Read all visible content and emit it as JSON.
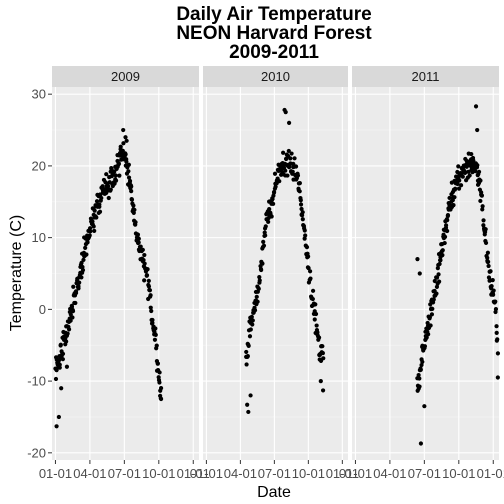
{
  "chart_data": {
    "type": "scatter",
    "title_lines": [
      "Daily Air Temperature",
      "NEON Harvard Forest",
      "2009-2011"
    ],
    "xlabel": "Date",
    "ylabel": "Temperature (C)",
    "facets": [
      "2009",
      "2010",
      "2011"
    ],
    "ylim": [
      -21,
      31
    ],
    "yticks": [
      -20,
      -10,
      0,
      10,
      20,
      30
    ],
    "xlim_months": [
      0.7,
      13.5
    ],
    "xtick_months": [
      1,
      4,
      7,
      10,
      13
    ],
    "xtick_labels": [
      "01-01",
      "04-01",
      "07-01",
      "10-01",
      "01-01"
    ],
    "grid": true,
    "legend": "none",
    "colors": {
      "panel_bg": "#ebebeb",
      "strip_bg": "#d9d9d9",
      "grid_major": "#ffffff",
      "points": "#000000"
    },
    "series": [
      {
        "facet": "2009",
        "anchors": [
          [
            1.0,
            -9
          ],
          [
            1.8,
            -4
          ],
          [
            2.3,
            -1
          ],
          [
            3.0,
            4
          ],
          [
            3.5,
            8
          ],
          [
            4.0,
            11
          ],
          [
            4.6,
            14
          ],
          [
            5.1,
            16.5
          ],
          [
            5.6,
            17.5
          ],
          [
            6.2,
            19
          ],
          [
            6.7,
            21.5
          ],
          [
            7.0,
            22.5
          ],
          [
            7.3,
            19
          ],
          [
            7.7,
            15
          ],
          [
            8.0,
            11
          ],
          [
            8.4,
            8
          ],
          [
            8.7,
            6
          ],
          [
            9.0,
            4
          ],
          [
            9.3,
            1
          ],
          [
            9.6,
            -3
          ],
          [
            9.9,
            -7
          ],
          [
            10.1,
            -11
          ]
        ],
        "extremes": [
          [
            1.1,
            -16.3
          ],
          [
            1.3,
            -15
          ],
          [
            1.5,
            -11
          ],
          [
            2.0,
            -8
          ],
          [
            6.9,
            25
          ],
          [
            7.1,
            24
          ],
          [
            7.2,
            23.5
          ],
          [
            10.2,
            -12.5
          ]
        ],
        "days": 300,
        "month_start": 1.0,
        "month_end": 10.2,
        "spread": 2.2
      },
      {
        "facet": "2010",
        "anchors": [
          [
            4.5,
            -8
          ],
          [
            4.8,
            -3
          ],
          [
            5.2,
            0
          ],
          [
            5.6,
            3
          ],
          [
            6.0,
            9
          ],
          [
            6.3,
            12
          ],
          [
            6.8,
            15
          ],
          [
            7.2,
            18
          ],
          [
            7.6,
            19.5
          ],
          [
            8.1,
            20.5
          ],
          [
            8.5,
            20
          ],
          [
            8.9,
            19
          ],
          [
            9.2,
            17
          ],
          [
            9.5,
            13
          ],
          [
            9.8,
            9
          ],
          [
            10.1,
            5
          ],
          [
            10.4,
            1
          ],
          [
            10.7,
            -2
          ],
          [
            11.0,
            -6
          ]
        ],
        "extremes": [
          [
            4.6,
            -13.3
          ],
          [
            4.7,
            -14.3
          ],
          [
            4.9,
            -12
          ],
          [
            7.9,
            27.8
          ],
          [
            8.0,
            27.5
          ],
          [
            8.3,
            26
          ],
          [
            11.1,
            -10
          ],
          [
            11.3,
            -11.3
          ]
        ],
        "days": 200,
        "month_start": 4.5,
        "month_end": 11.3,
        "spread": 2.0
      },
      {
        "facet": "2011",
        "anchors": [
          [
            6.5,
            -10
          ],
          [
            6.9,
            -6
          ],
          [
            7.3,
            -2
          ],
          [
            7.7,
            1
          ],
          [
            8.1,
            4
          ],
          [
            8.5,
            8
          ],
          [
            8.9,
            12
          ],
          [
            9.3,
            15
          ],
          [
            9.7,
            17
          ],
          [
            10.2,
            19
          ],
          [
            10.7,
            20
          ],
          [
            11.2,
            20.5
          ],
          [
            11.7,
            19
          ],
          [
            12.0,
            15
          ],
          [
            12.3,
            10
          ],
          [
            12.6,
            6
          ],
          [
            12.9,
            3
          ],
          [
            13.2,
            0
          ],
          [
            13.4,
            -5
          ]
        ],
        "extremes": [
          [
            6.4,
            7
          ],
          [
            6.6,
            5
          ],
          [
            6.7,
            -18.7
          ],
          [
            7.0,
            -13.5
          ],
          [
            11.5,
            28.3
          ],
          [
            11.6,
            25
          ],
          [
            13.4,
            -9.5
          ]
        ],
        "days": 230,
        "month_start": 6.4,
        "month_end": 13.4,
        "spread": 2.2
      }
    ]
  }
}
